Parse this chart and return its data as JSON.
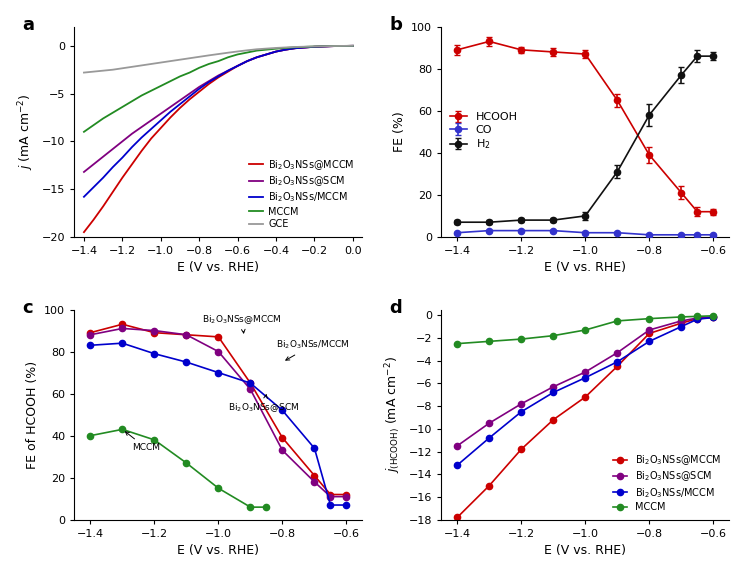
{
  "panel_a": {
    "xlim": [
      -1.45,
      0.05
    ],
    "ylim": [
      -20,
      2
    ],
    "yticks": [
      0,
      -5,
      -10,
      -15,
      -20
    ],
    "xticks": [
      -1.4,
      -1.2,
      -1.0,
      -0.8,
      -0.6,
      -0.4,
      -0.2,
      0.0
    ],
    "curves": {
      "Bi2O3NSs@MCCM": {
        "color": "#cc0000",
        "x": [
          -1.4,
          -1.35,
          -1.3,
          -1.25,
          -1.2,
          -1.15,
          -1.1,
          -1.05,
          -1.0,
          -0.95,
          -0.9,
          -0.85,
          -0.8,
          -0.75,
          -0.7,
          -0.65,
          -0.6,
          -0.55,
          -0.5,
          -0.45,
          -0.4,
          -0.35,
          -0.3,
          -0.2,
          -0.1,
          0.0
        ],
        "y": [
          -19.5,
          -18.2,
          -16.8,
          -15.3,
          -13.8,
          -12.4,
          -11.0,
          -9.7,
          -8.6,
          -7.5,
          -6.5,
          -5.6,
          -4.8,
          -4.0,
          -3.3,
          -2.7,
          -2.1,
          -1.6,
          -1.2,
          -0.9,
          -0.6,
          -0.4,
          -0.25,
          -0.1,
          -0.03,
          0.0
        ]
      },
      "Bi2O3NSs@SCM": {
        "color": "#800080",
        "x": [
          -1.4,
          -1.35,
          -1.3,
          -1.25,
          -1.2,
          -1.15,
          -1.1,
          -1.05,
          -1.0,
          -0.95,
          -0.9,
          -0.85,
          -0.8,
          -0.75,
          -0.7,
          -0.65,
          -0.6,
          -0.55,
          -0.5,
          -0.45,
          -0.4,
          -0.35,
          -0.3,
          -0.2,
          -0.1,
          0.0
        ],
        "y": [
          -13.2,
          -12.4,
          -11.6,
          -10.8,
          -10.0,
          -9.2,
          -8.5,
          -7.8,
          -7.1,
          -6.4,
          -5.7,
          -5.0,
          -4.3,
          -3.7,
          -3.1,
          -2.6,
          -2.1,
          -1.6,
          -1.2,
          -0.9,
          -0.6,
          -0.4,
          -0.25,
          -0.1,
          -0.03,
          0.0
        ]
      },
      "Bi2O3NSs/MCCM": {
        "color": "#0000cc",
        "x": [
          -1.4,
          -1.35,
          -1.3,
          -1.25,
          -1.2,
          -1.15,
          -1.1,
          -1.05,
          -1.0,
          -0.95,
          -0.9,
          -0.85,
          -0.8,
          -0.75,
          -0.7,
          -0.65,
          -0.6,
          -0.55,
          -0.5,
          -0.45,
          -0.4,
          -0.35,
          -0.3,
          -0.2,
          -0.1,
          0.0
        ],
        "y": [
          -15.8,
          -14.8,
          -13.8,
          -12.7,
          -11.7,
          -10.6,
          -9.6,
          -8.7,
          -7.8,
          -6.9,
          -6.1,
          -5.3,
          -4.5,
          -3.8,
          -3.2,
          -2.6,
          -2.1,
          -1.6,
          -1.2,
          -0.9,
          -0.6,
          -0.4,
          -0.25,
          -0.1,
          -0.03,
          0.0
        ]
      },
      "MCCM": {
        "color": "#228B22",
        "x": [
          -1.4,
          -1.35,
          -1.3,
          -1.25,
          -1.2,
          -1.15,
          -1.1,
          -1.05,
          -1.0,
          -0.95,
          -0.9,
          -0.85,
          -0.8,
          -0.75,
          -0.7,
          -0.65,
          -0.6,
          -0.55,
          -0.5,
          -0.4,
          -0.3,
          -0.2,
          -0.1,
          0.0
        ],
        "y": [
          -9.0,
          -8.3,
          -7.6,
          -7.0,
          -6.4,
          -5.8,
          -5.2,
          -4.7,
          -4.2,
          -3.7,
          -3.2,
          -2.8,
          -2.3,
          -1.9,
          -1.6,
          -1.2,
          -0.9,
          -0.7,
          -0.5,
          -0.3,
          -0.15,
          -0.07,
          -0.02,
          0.0
        ]
      },
      "GCE": {
        "color": "#999999",
        "x": [
          -1.4,
          -1.35,
          -1.3,
          -1.25,
          -1.2,
          -1.15,
          -1.1,
          -1.05,
          -1.0,
          -0.95,
          -0.9,
          -0.85,
          -0.8,
          -0.75,
          -0.7,
          -0.65,
          -0.6,
          -0.55,
          -0.5,
          -0.4,
          -0.3,
          -0.2,
          -0.1,
          0.0
        ],
        "y": [
          -2.8,
          -2.7,
          -2.6,
          -2.5,
          -2.35,
          -2.2,
          -2.05,
          -1.9,
          -1.75,
          -1.6,
          -1.45,
          -1.3,
          -1.15,
          -1.0,
          -0.86,
          -0.72,
          -0.59,
          -0.47,
          -0.36,
          -0.22,
          -0.12,
          -0.06,
          -0.02,
          0.0
        ]
      }
    }
  },
  "panel_b": {
    "xlim": [
      -1.45,
      -0.55
    ],
    "ylim": [
      0,
      100
    ],
    "yticks": [
      0,
      20,
      40,
      60,
      80,
      100
    ],
    "xticks": [
      -1.4,
      -1.2,
      -1.0,
      -0.8,
      -0.6
    ],
    "HCOOH": {
      "color": "#cc0000",
      "x": [
        -1.4,
        -1.3,
        -1.2,
        -1.1,
        -1.0,
        -0.9,
        -0.8,
        -0.7,
        -0.65,
        -0.6
      ],
      "y": [
        89,
        93,
        89,
        88,
        87,
        65,
        39,
        21,
        12,
        12
      ],
      "yerr": [
        2.5,
        2,
        1.5,
        2,
        2,
        3,
        4,
        3,
        2,
        1.5
      ]
    },
    "CO": {
      "color": "#3333cc",
      "x": [
        -1.4,
        -1.3,
        -1.2,
        -1.1,
        -1.0,
        -0.9,
        -0.8,
        -0.7,
        -0.65,
        -0.6
      ],
      "y": [
        2,
        3,
        3,
        3,
        2,
        2,
        1,
        1,
        1,
        1
      ],
      "yerr": [
        0.5,
        0.5,
        0.5,
        0.5,
        0.5,
        0.5,
        0.5,
        0.5,
        0.5,
        0.5
      ]
    },
    "H2": {
      "color": "#111111",
      "x": [
        -1.4,
        -1.3,
        -1.2,
        -1.1,
        -1.0,
        -0.9,
        -0.8,
        -0.7,
        -0.65,
        -0.6
      ],
      "y": [
        7,
        7,
        8,
        8,
        10,
        31,
        58,
        77,
        86,
        86
      ],
      "yerr": [
        1,
        1,
        1,
        1,
        2,
        3,
        5,
        4,
        3,
        2
      ]
    }
  },
  "panel_c": {
    "xlim": [
      -1.45,
      -0.55
    ],
    "ylim": [
      0,
      100
    ],
    "yticks": [
      0,
      20,
      40,
      60,
      80,
      100
    ],
    "xticks": [
      -1.4,
      -1.2,
      -1.0,
      -0.8,
      -0.6
    ],
    "Bi2O3NSs_MCCM": {
      "color": "#cc0000",
      "x": [
        -1.4,
        -1.3,
        -1.2,
        -1.1,
        -1.0,
        -0.9,
        -0.8,
        -0.7,
        -0.65,
        -0.6
      ],
      "y": [
        89,
        93,
        89,
        88,
        87,
        65,
        39,
        21,
        12,
        12
      ]
    },
    "Bi2O3NSs_SCM": {
      "color": "#800080",
      "x": [
        -1.4,
        -1.3,
        -1.2,
        -1.1,
        -1.0,
        -0.9,
        -0.8,
        -0.7,
        -0.65,
        -0.6
      ],
      "y": [
        88,
        91,
        90,
        88,
        80,
        62,
        33,
        18,
        11,
        11
      ]
    },
    "Bi2O3NSs_MCCM2": {
      "color": "#0000cc",
      "x": [
        -1.4,
        -1.3,
        -1.2,
        -1.1,
        -1.0,
        -0.9,
        -0.8,
        -0.7,
        -0.65,
        -0.6
      ],
      "y": [
        83,
        84,
        79,
        75,
        70,
        65,
        52,
        34,
        7,
        7
      ]
    },
    "MCCM": {
      "color": "#228B22",
      "x": [
        -1.4,
        -1.3,
        -1.2,
        -1.1,
        -1.0,
        -0.9,
        -0.85
      ],
      "y": [
        40,
        43,
        38,
        27,
        15,
        6,
        6
      ]
    }
  },
  "panel_d": {
    "xlim": [
      -1.45,
      -0.55
    ],
    "ylim": [
      -18,
      0.5
    ],
    "yticks": [
      0,
      -2,
      -4,
      -6,
      -8,
      -10,
      -12,
      -14,
      -16,
      -18
    ],
    "xticks": [
      -1.4,
      -1.2,
      -1.0,
      -0.8,
      -0.6
    ],
    "Bi2O3NSs_MCCM": {
      "color": "#cc0000",
      "x": [
        -1.4,
        -1.3,
        -1.2,
        -1.1,
        -1.0,
        -0.9,
        -0.8,
        -0.7,
        -0.65,
        -0.6
      ],
      "y": [
        -17.8,
        -15.0,
        -11.8,
        -9.2,
        -7.2,
        -4.5,
        -1.6,
        -0.7,
        -0.3,
        -0.2
      ]
    },
    "Bi2O3NSs_SCM": {
      "color": "#800080",
      "x": [
        -1.4,
        -1.3,
        -1.2,
        -1.1,
        -1.0,
        -0.9,
        -0.8,
        -0.7,
        -0.65,
        -0.6
      ],
      "y": [
        -11.5,
        -9.5,
        -7.8,
        -6.3,
        -5.0,
        -3.3,
        -1.3,
        -0.5,
        -0.25,
        -0.15
      ]
    },
    "Bi2O3NSs_MCCM2": {
      "color": "#0000cc",
      "x": [
        -1.4,
        -1.3,
        -1.2,
        -1.1,
        -1.0,
        -0.9,
        -0.8,
        -0.7,
        -0.65,
        -0.6
      ],
      "y": [
        -13.2,
        -10.8,
        -8.5,
        -6.8,
        -5.5,
        -4.1,
        -2.3,
        -1.0,
        -0.35,
        -0.2
      ]
    },
    "MCCM": {
      "color": "#228B22",
      "x": [
        -1.4,
        -1.3,
        -1.2,
        -1.1,
        -1.0,
        -0.9,
        -0.8,
        -0.7,
        -0.65,
        -0.6
      ],
      "y": [
        -2.5,
        -2.3,
        -2.1,
        -1.8,
        -1.3,
        -0.5,
        -0.3,
        -0.15,
        -0.1,
        -0.05
      ]
    }
  }
}
